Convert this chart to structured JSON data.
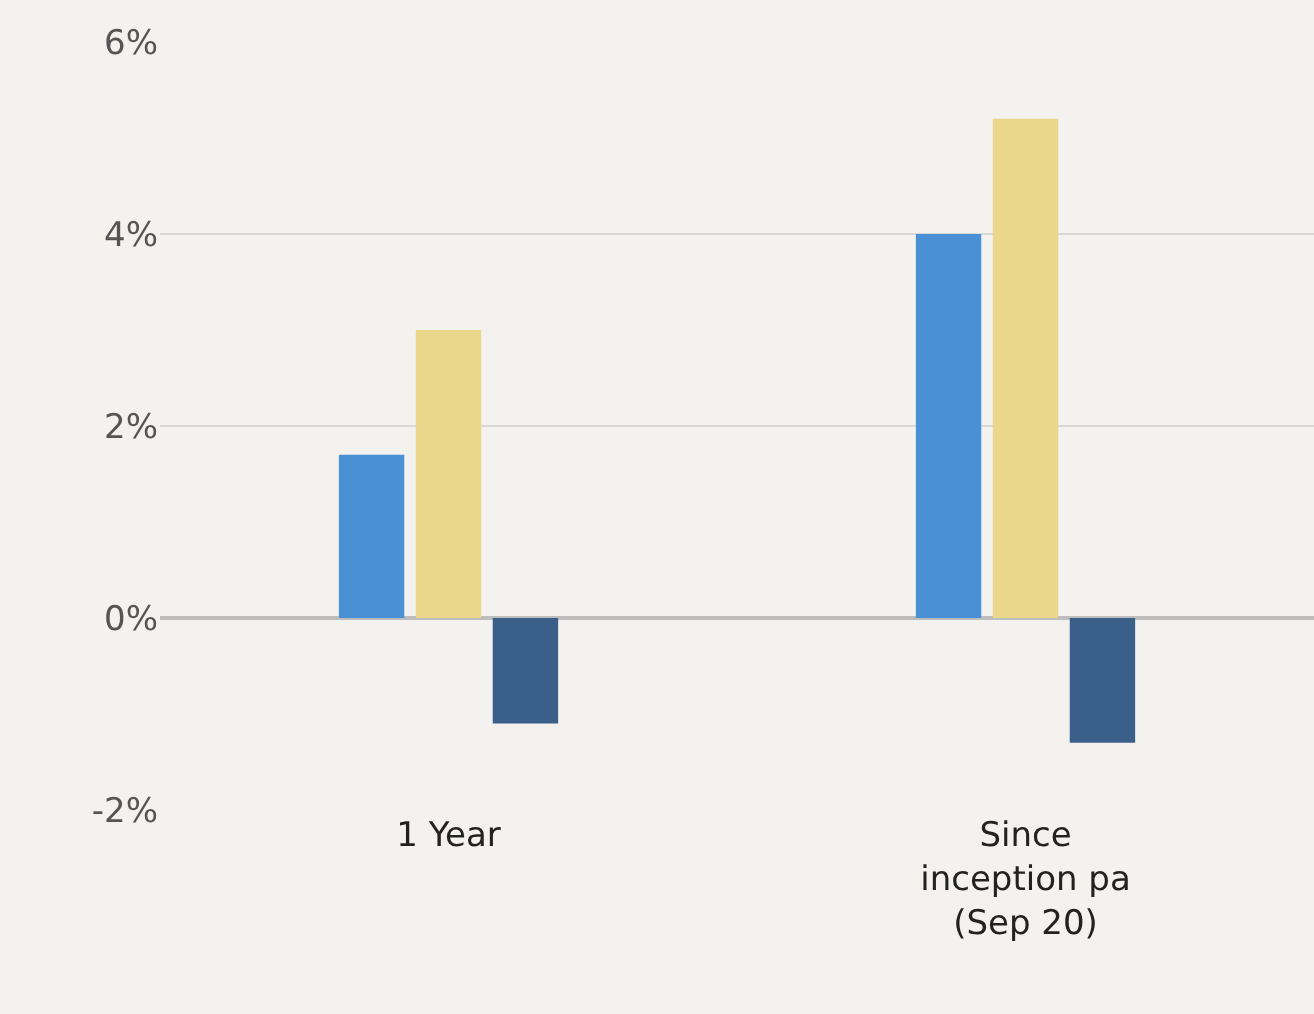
{
  "chart_data": {
    "type": "bar",
    "categories": [
      "1 Year",
      "Since\ninception pa\n(Sep 20)"
    ],
    "series": [
      {
        "color": "#4a90d4",
        "values": [
          1.7,
          4.0
        ]
      },
      {
        "color": "#ead78c",
        "values": [
          3.0,
          5.2
        ]
      },
      {
        "color": "#3a5f88",
        "values": [
          -1.1,
          -1.3
        ]
      }
    ],
    "ylim": [
      -2,
      6
    ],
    "yticks": [
      {
        "value": -2,
        "label": "-2%"
      },
      {
        "value": 0,
        "label": "0%"
      },
      {
        "value": 2,
        "label": "2%"
      },
      {
        "value": 4,
        "label": "4%"
      },
      {
        "value": 6,
        "label": "6%"
      }
    ],
    "grid": "y",
    "legend": false
  }
}
